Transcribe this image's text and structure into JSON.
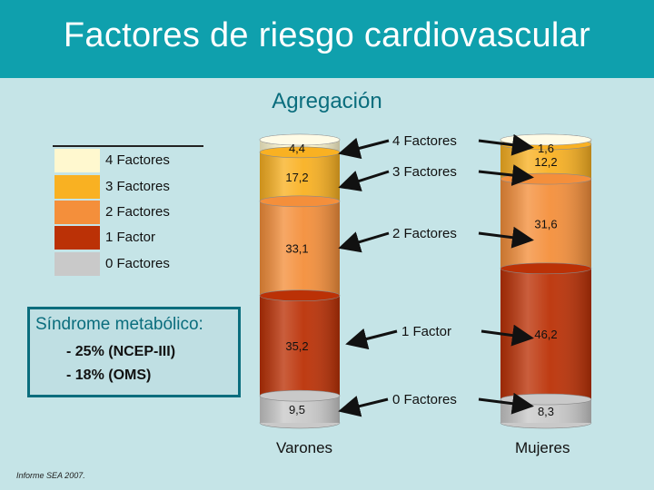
{
  "header": {
    "title": "Factores de riesgo cardiovascular"
  },
  "subtitle": "Agregación",
  "legend": [
    {
      "label": "4 Factores",
      "color": "#fff8cf"
    },
    {
      "label": "3 Factores",
      "color": "#f9b122"
    },
    {
      "label": "2 Factores",
      "color": "#f48f3b"
    },
    {
      "label": "1 Factor",
      "color": "#bb3106"
    },
    {
      "label": "0 Factores",
      "color": "#c9c9c9"
    }
  ],
  "metabolic_box": {
    "title": "Síndrome metabólico:",
    "line1": "- 25% (NCEP-III)",
    "line2": "- 18% (OMS)"
  },
  "footnote": "Informe SEA 2007.",
  "center_labels": [
    "4 Factores",
    "3 Factores",
    "2 Factores",
    "1 Factor",
    "0  Factores"
  ],
  "chart_data": {
    "type": "bar",
    "stacked": true,
    "categories": [
      "Varones",
      "Mujeres"
    ],
    "series": [
      {
        "name": "4 Factores",
        "values": [
          4.4,
          1.6
        ],
        "labels": [
          "4,4",
          "1,6"
        ]
      },
      {
        "name": "3 Factores",
        "values": [
          17.2,
          12.2
        ],
        "labels": [
          "17,2",
          "12,2"
        ]
      },
      {
        "name": "2 Factores",
        "values": [
          33.1,
          31.6
        ],
        "labels": [
          "33,1",
          "31,6"
        ]
      },
      {
        "name": "1 Factor",
        "values": [
          35.2,
          46.2
        ],
        "labels": [
          "35,2",
          "46,2"
        ]
      },
      {
        "name": "0 Factores",
        "values": [
          9.5,
          8.3
        ],
        "labels": [
          "9,5",
          "8,3"
        ]
      }
    ]
  }
}
